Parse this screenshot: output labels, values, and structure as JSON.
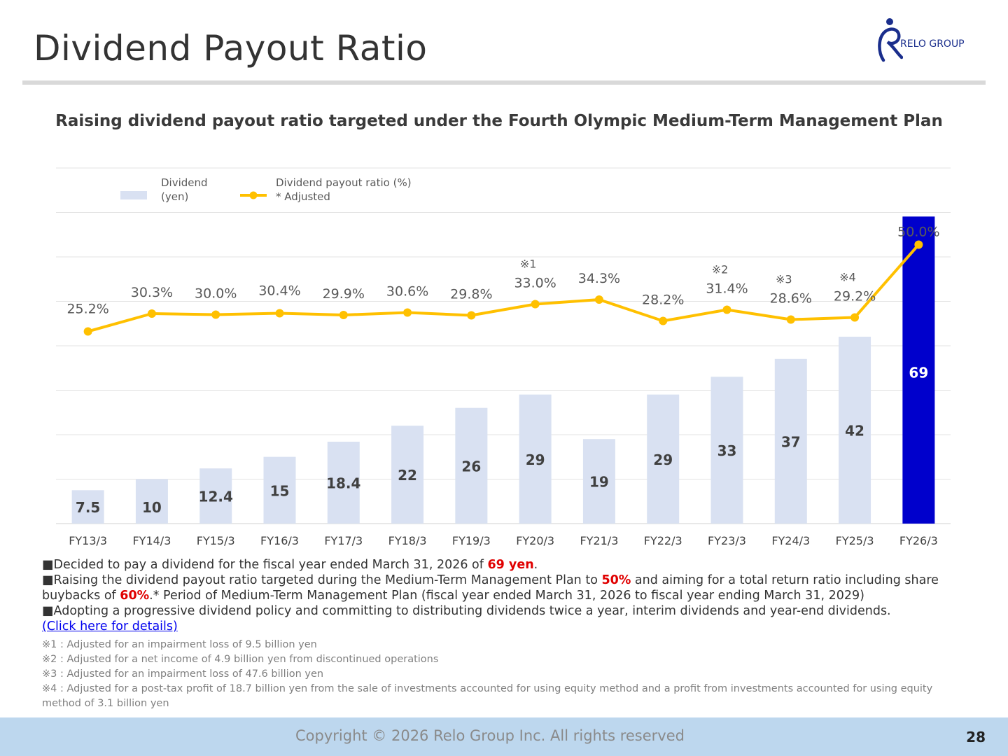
{
  "header": {
    "title": "Dividend Payout Ratio",
    "logo_text": "RELO GROUP"
  },
  "chart_data": {
    "type": "bar",
    "title": "Raising dividend payout ratio targeted under the Fourth Olympic Medium-Term Management Plan",
    "categories": [
      "FY13/3",
      "FY14/3",
      "FY15/3",
      "FY16/3",
      "FY17/3",
      "FY18/3",
      "FY19/3",
      "FY20/3",
      "FY21/3",
      "FY22/3",
      "FY23/3",
      "FY24/3",
      "FY25/3",
      "FY26/3"
    ],
    "series": [
      {
        "name": "Dividend (yen)",
        "type": "bar",
        "values": [
          7.5,
          10,
          12.4,
          15,
          18.4,
          22,
          26,
          29,
          19,
          29,
          33,
          37,
          42,
          69
        ],
        "labels": [
          "7.5",
          "10",
          "12.4",
          "15",
          "18.4",
          "22",
          "26",
          "29",
          "19",
          "29",
          "33",
          "37",
          "42",
          "69"
        ],
        "color": "#d9e1f2",
        "highlight_color": "#0000cc",
        "highlight_index": 13
      },
      {
        "name": "Dividend payout ratio (%)",
        "type": "line",
        "values": [
          25.2,
          30.3,
          30.0,
          30.4,
          29.9,
          30.6,
          29.8,
          33.0,
          34.3,
          28.2,
          31.4,
          28.6,
          29.2,
          50.0
        ],
        "labels": [
          "25.2%",
          "30.3%",
          "30.0%",
          "30.4%",
          "29.9%",
          "30.6%",
          "29.8%",
          "33.0%",
          "34.3%",
          "28.2%",
          "31.4%",
          "28.6%",
          "29.2%",
          "50.0%"
        ],
        "color": "#ffc000"
      }
    ],
    "annotations": [
      {
        "index": 7,
        "text": "※1"
      },
      {
        "index": 10,
        "text": "※2"
      },
      {
        "index": 11,
        "text": "※3"
      },
      {
        "index": 12,
        "text": "※4"
      }
    ],
    "legend": {
      "bar_label_line1": "Dividend",
      "bar_label_line2": "(yen)",
      "line_label_line1": "Dividend payout ratio (%)",
      "line_label_line2": "* Adjusted",
      "position": "top-left"
    },
    "ylim_bar": [
      0,
      80
    ],
    "grid": true
  },
  "notes": {
    "bullet": "■",
    "n1_pre": "Decided to pay a dividend for the fiscal year ended March 31, 2026 of ",
    "n1_em": "69 yen",
    "n1_post": ".",
    "n2_pre": "Raising the dividend payout ratio targeted during the Medium-Term Management Plan to ",
    "n2_em1": "50%",
    "n2_mid": " and aiming for a total return ratio including share buybacks of ",
    "n2_em2": "60%",
    "n2_post": ".* Period of Medium-Term Management Plan (fiscal year ended March 31, 2026 to fiscal year ending March 31, 2029)",
    "n3": "Adopting a progressive dividend policy and committing to distributing dividends twice a year, interim dividends and year-end dividends.",
    "link": "(Click here for details)"
  },
  "footnotes": [
    "※1 : Adjusted for an impairment loss of 9.5 billion yen",
    "※2 : Adjusted for a net income of 4.9 billion yen from discontinued operations",
    "※3 : Adjusted for an impairment loss of 47.6 billion yen",
    "※4 : Adjusted for a post-tax profit of 18.7 billion yen from the sale of investments accounted for using equity method and a profit from investments accounted for using equity method of 3.1 billion yen"
  ],
  "footer": {
    "copyright": "Copyright © 2026 Relo Group Inc. All rights reserved",
    "page_number": "28"
  }
}
